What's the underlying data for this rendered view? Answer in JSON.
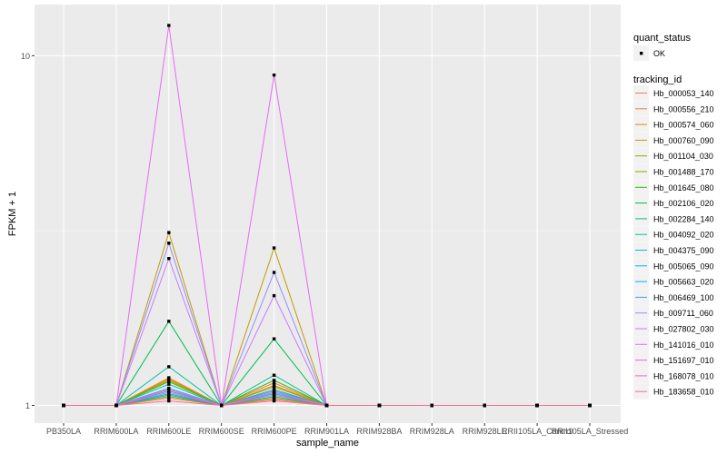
{
  "chart_data": {
    "type": "line",
    "xlabel": "sample_name",
    "ylabel": "FPKM + 1",
    "y_scale": "log10",
    "ylim": [
      0.89,
      14
    ],
    "y_ticks": [
      1,
      10
    ],
    "y_tick_labels": [
      "1",
      "10"
    ],
    "grid": true,
    "legend_placement": "right",
    "categories": [
      "PB350LA",
      "RRIM600LA",
      "RRIM600LE",
      "RRIM600SE",
      "RRIM600PE",
      "RRIM901LA",
      "RRIM928BA",
      "RRIM928LA",
      "RRIM928LE",
      "RRII105LA_Control",
      "RRII105LA_Stressed"
    ],
    "shape_legend": {
      "title": "quant_status",
      "items": [
        "OK"
      ]
    },
    "color_legend_title": "tracking_id",
    "series": [
      {
        "name": "Hb_000053_140",
        "color": "#F8766D",
        "values": [
          1,
          1,
          1.05,
          1,
          1.04,
          1,
          1,
          1,
          1,
          1,
          1
        ]
      },
      {
        "name": "Hb_000556_210",
        "color": "#EA8331",
        "values": [
          1,
          1,
          1.2,
          1,
          1.16,
          1,
          1,
          1,
          1,
          1,
          1
        ]
      },
      {
        "name": "Hb_000574_060",
        "color": "#D89000",
        "values": [
          1,
          1,
          1.19,
          1,
          1.14,
          1,
          1,
          1,
          1,
          1,
          1
        ]
      },
      {
        "name": "Hb_000760_090",
        "color": "#C09B00",
        "values": [
          1,
          1,
          3.12,
          1,
          2.82,
          1,
          1,
          1,
          1,
          1,
          1
        ]
      },
      {
        "name": "Hb_001104_030",
        "color": "#A3A500",
        "values": [
          1,
          1,
          1.18,
          1,
          1.13,
          1,
          1,
          1,
          1,
          1,
          1
        ]
      },
      {
        "name": "Hb_001488_170",
        "color": "#7CAE00",
        "values": [
          1,
          1,
          1.06,
          1,
          1.05,
          1,
          1,
          1,
          1,
          1,
          1
        ]
      },
      {
        "name": "Hb_001645_080",
        "color": "#39B600",
        "values": [
          1,
          1,
          1.17,
          1,
          1.18,
          1,
          1,
          1,
          1,
          1,
          1
        ]
      },
      {
        "name": "Hb_002106_020",
        "color": "#00BB4E",
        "values": [
          1,
          1,
          1.74,
          1,
          1.55,
          1,
          1,
          1,
          1,
          1,
          1
        ]
      },
      {
        "name": "Hb_002284_140",
        "color": "#00BF7D",
        "values": [
          1,
          1,
          1.07,
          1,
          1.06,
          1,
          1,
          1,
          1,
          1,
          1
        ]
      },
      {
        "name": "Hb_004092_020",
        "color": "#00C1A3",
        "values": [
          1,
          1,
          1.29,
          1,
          1.22,
          1,
          1,
          1,
          1,
          1,
          1
        ]
      },
      {
        "name": "Hb_004375_090",
        "color": "#00BFC4",
        "values": [
          1,
          1,
          1.15,
          1,
          1.11,
          1,
          1,
          1,
          1,
          1,
          1
        ]
      },
      {
        "name": "Hb_005065_090",
        "color": "#00BAE0",
        "values": [
          1,
          1,
          1.1,
          1,
          1.08,
          1,
          1,
          1,
          1,
          1,
          1
        ]
      },
      {
        "name": "Hb_005663_020",
        "color": "#00B0F6",
        "values": [
          1,
          1,
          1.08,
          1,
          1.09,
          1,
          1,
          1,
          1,
          1,
          1
        ]
      },
      {
        "name": "Hb_006469_100",
        "color": "#35A2FF",
        "values": [
          1,
          1,
          1.12,
          1,
          1.1,
          1,
          1,
          1,
          1,
          1,
          1
        ]
      },
      {
        "name": "Hb_009711_060",
        "color": "#9590FF",
        "values": [
          1,
          1,
          2.91,
          1,
          2.4,
          1,
          1,
          1,
          1,
          1,
          1
        ]
      },
      {
        "name": "Hb_027802_030",
        "color": "#C77CFF",
        "values": [
          1,
          1,
          2.63,
          1,
          2.06,
          1,
          1,
          1,
          1,
          1,
          1
        ]
      },
      {
        "name": "Hb_141016_010",
        "color": "#E76BF3",
        "values": [
          1,
          1,
          12.2,
          1,
          8.8,
          1,
          1,
          1,
          1,
          1,
          1
        ]
      },
      {
        "name": "Hb_151697_010",
        "color": "#FA62DB",
        "values": [
          1,
          1,
          1.09,
          1,
          1.07,
          1,
          1,
          1,
          1,
          1,
          1
        ]
      },
      {
        "name": "Hb_168078_010",
        "color": "#FF62BC",
        "values": [
          1,
          1,
          1.11,
          1,
          1.09,
          1,
          1,
          1,
          1,
          1,
          1
        ]
      },
      {
        "name": "Hb_183658_010",
        "color": "#FF6C91",
        "values": [
          1,
          1,
          1.03,
          1,
          1.03,
          1,
          1,
          1,
          1,
          1,
          1
        ]
      }
    ]
  }
}
